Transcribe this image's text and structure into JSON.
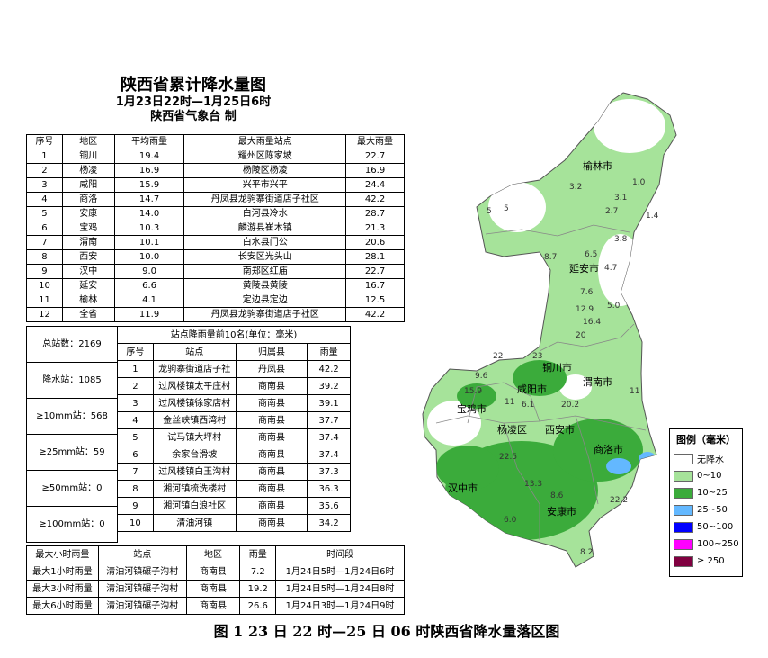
{
  "title": {
    "main": "陕西省累计降水量图",
    "period": "1月23日22时—1月25日6时",
    "issuer": "陕西省气象台  制"
  },
  "region_table": {
    "headers": [
      "序号",
      "地区",
      "平均雨量",
      "最大雨量站点",
      "最大雨量"
    ],
    "rows": [
      [
        "1",
        "铜川",
        "19.4",
        "耀州区陈家坡",
        "22.7"
      ],
      [
        "2",
        "杨凌",
        "16.9",
        "杨陵区杨凌",
        "16.9"
      ],
      [
        "3",
        "咸阳",
        "15.9",
        "兴平市兴平",
        "24.4"
      ],
      [
        "4",
        "商洛",
        "14.7",
        "丹凤县龙驹寨街道店子社区",
        "42.2"
      ],
      [
        "5",
        "安康",
        "14.0",
        "白河县冷水",
        "28.7"
      ],
      [
        "6",
        "宝鸡",
        "10.3",
        "麟游县崔木镇",
        "21.3"
      ],
      [
        "7",
        "渭南",
        "10.1",
        "白水县门公",
        "20.6"
      ],
      [
        "8",
        "西安",
        "10.0",
        "长安区光头山",
        "28.1"
      ],
      [
        "9",
        "汉中",
        "9.0",
        "南郑区红庙",
        "22.7"
      ],
      [
        "10",
        "延安",
        "6.6",
        "黄陵县黄陵",
        "16.7"
      ],
      [
        "11",
        "榆林",
        "4.1",
        "定边县定边",
        "12.5"
      ],
      [
        "12",
        "全省",
        "11.9",
        "丹凤县龙驹寨街道店子社区",
        "42.2"
      ]
    ]
  },
  "stats": [
    "总站数：2169",
    "降水站：1085",
    "≥10mm站：568",
    "≥25mm站：59",
    "≥50mm站：0",
    "≥100mm站：0"
  ],
  "top10_table": {
    "caption": "站点降雨量前10名(单位：毫米)",
    "headers": [
      "序号",
      "站点",
      "归属县",
      "雨量"
    ],
    "rows": [
      [
        "1",
        "龙驹寨街道店子社",
        "丹凤县",
        "42.2"
      ],
      [
        "2",
        "过风楼镇太平庄村",
        "商南县",
        "39.2"
      ],
      [
        "3",
        "过风楼镇徐家店村",
        "商南县",
        "39.1"
      ],
      [
        "4",
        "金丝峡镇西湾村",
        "商南县",
        "37.7"
      ],
      [
        "5",
        "试马镇大坪村",
        "商南县",
        "37.4"
      ],
      [
        "6",
        "余家台滑坡",
        "商南县",
        "37.4"
      ],
      [
        "7",
        "过风楼镇白玉沟村",
        "商南县",
        "37.3"
      ],
      [
        "8",
        "湘河镇梳洗楼村",
        "商南县",
        "36.3"
      ],
      [
        "9",
        "湘河镇白浪社区",
        "商南县",
        "35.6"
      ],
      [
        "10",
        "清油河镇",
        "商南县",
        "34.2"
      ]
    ]
  },
  "hourly_table": {
    "headers": [
      "最大小时雨量",
      "站点",
      "地区",
      "雨量",
      "时间段"
    ],
    "rows": [
      [
        "最大1小时雨量",
        "清油河镇碾子沟村",
        "商南县",
        "7.2",
        "1月24日5时—1月24日6时"
      ],
      [
        "最大3小时雨量",
        "清油河镇碾子沟村",
        "商南县",
        "19.2",
        "1月24日5时—1月24日8时"
      ],
      [
        "最大6小时雨量",
        "清油河镇碾子沟村",
        "商南县",
        "26.6",
        "1月24日3时—1月24日9时"
      ]
    ]
  },
  "legend": {
    "title": "图例（毫米）",
    "items": [
      {
        "label": "无降水",
        "color": "#ffffff"
      },
      {
        "label": "0~10",
        "color": "#a6e39a"
      },
      {
        "label": "10~25",
        "color": "#3bab3b"
      },
      {
        "label": "25~50",
        "color": "#63b8ff"
      },
      {
        "label": "50~100",
        "color": "#0000ff"
      },
      {
        "label": "100~250",
        "color": "#ff00ff"
      },
      {
        "label": "≥ 250",
        "color": "#800040"
      }
    ]
  },
  "cities": [
    "榆林市",
    "延安市",
    "铜川市",
    "渭南市",
    "咸阳市",
    "宝鸡市",
    "杨凌区",
    "西安市",
    "商洛市",
    "汉中市",
    "安康市"
  ],
  "map_values": [
    "3.2",
    "1.0",
    "3.1",
    "2.7",
    "1.4",
    "5",
    "5",
    "3.8",
    "6.5",
    "8.7",
    "4.7",
    "7.6",
    "12.9",
    "5.0",
    "16.4",
    "20",
    "9.6",
    "22",
    "23",
    "15.9",
    "11",
    "20.2",
    "6.1",
    "22.5",
    "13.3",
    "8.6",
    "22.2",
    "8.2",
    "6.0",
    "11"
  ],
  "caption": "图 1    23 日 22 时—25 日 06 时陕西省降水量落区图"
}
